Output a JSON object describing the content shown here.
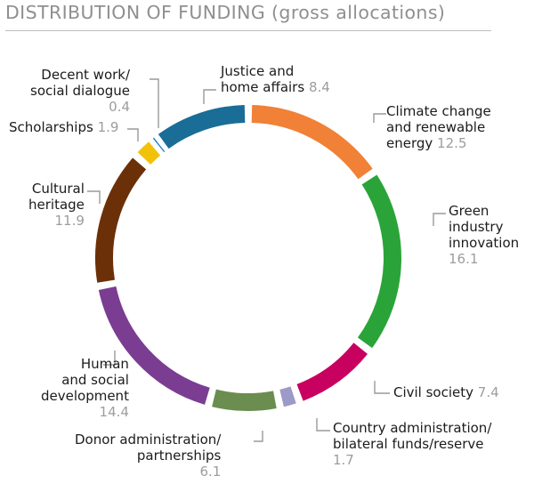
{
  "chart_data": {
    "type": "pie",
    "title": "DISTRIBUTION OF FUNDING (gross allocations)",
    "style": "donut",
    "start": "top, clockwise",
    "slices": [
      {
        "label": [
          "Climate change",
          "and renewable",
          "energy"
        ],
        "value": 12.5,
        "value_text": "12.5",
        "color": "#f08136"
      },
      {
        "label": [
          "Green",
          "industry",
          "innovation"
        ],
        "value": 16.1,
        "value_text": "16.1",
        "color": "#2aa438"
      },
      {
        "label": [
          "Civil society"
        ],
        "value": 7.4,
        "value_text": "7.4",
        "color": "#c8005f"
      },
      {
        "label": [
          "Country administration/",
          "bilateral funds/reserve"
        ],
        "value": 1.7,
        "value_text": "1.7",
        "color": "#9c9ac6"
      },
      {
        "label": [
          "Donor administration/",
          "partnerships"
        ],
        "value": 6.1,
        "value_text": "6.1",
        "color": "#6b8d4f"
      },
      {
        "label": [
          "Human",
          "and social",
          "development"
        ],
        "value": 14.4,
        "value_text": "14.4",
        "color": "#7b3d92"
      },
      {
        "label": [
          "Cultural",
          "heritage"
        ],
        "value": 11.9,
        "value_text": "11.9",
        "color": "#6b3008"
      },
      {
        "label": [
          "Scholarships"
        ],
        "value": 1.9,
        "value_text": "1.9",
        "color": "#f2c10a"
      },
      {
        "label": [
          "Decent work/",
          "social dialogue"
        ],
        "value": 0.4,
        "value_text": "0.4",
        "color": "#1e84c9"
      },
      {
        "label": [
          "Justice and",
          "home affairs"
        ],
        "value": 8.4,
        "value_text": "8.4",
        "color": "#1a6d96"
      }
    ]
  }
}
